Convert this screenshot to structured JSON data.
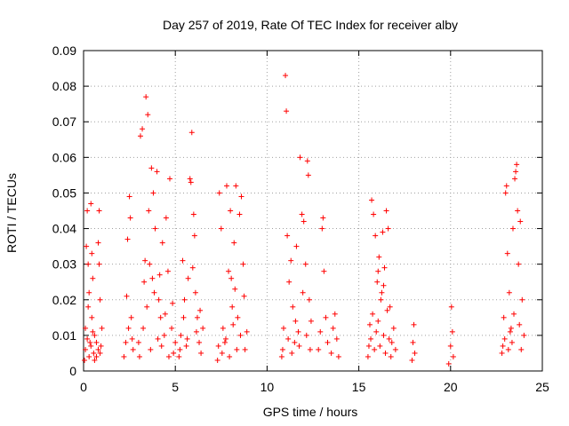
{
  "chart_data": {
    "type": "scatter",
    "title": "Day 257 of 2019, Rate Of TEC Index for receiver alby",
    "xlabel": "GPS time / hours",
    "ylabel": "ROTI / TECUs",
    "xlim": [
      0,
      25
    ],
    "ylim": [
      0,
      0.09
    ],
    "xticks": [
      0,
      5,
      10,
      15,
      20,
      25
    ],
    "yticks": [
      0,
      0.01,
      0.02,
      0.03,
      0.04,
      0.05,
      0.06,
      0.07,
      0.08,
      0.09
    ],
    "xtick_labels": [
      "0",
      "5",
      "10",
      "15",
      "20",
      "25"
    ],
    "ytick_labels": [
      "0",
      "0.01",
      "0.02",
      "0.03",
      "0.04",
      "0.05",
      "0.06",
      "0.07",
      "0.08",
      "0.09"
    ],
    "grid": true,
    "marker": "+",
    "color": "#ff0000",
    "series": [
      {
        "name": "ROTI",
        "points": [
          [
            0.05,
            0.003
          ],
          [
            0.1,
            0.012
          ],
          [
            0.15,
            0.035
          ],
          [
            0.2,
            0.045
          ],
          [
            0.25,
            0.03
          ],
          [
            0.3,
            0.022
          ],
          [
            0.35,
            0.008
          ],
          [
            0.4,
            0.047
          ],
          [
            0.45,
            0.015
          ],
          [
            0.5,
            0.026
          ],
          [
            0.55,
            0.005
          ],
          [
            0.6,
            0.01
          ],
          [
            0.7,
            0.004
          ],
          [
            0.8,
            0.036
          ],
          [
            0.85,
            0.045
          ],
          [
            0.9,
            0.02
          ],
          [
            0.95,
            0.007
          ],
          [
            1.0,
            0.012
          ],
          [
            0.1,
            0.006
          ],
          [
            0.2,
            0.009
          ],
          [
            0.3,
            0.004
          ],
          [
            0.4,
            0.007
          ],
          [
            0.5,
            0.011
          ],
          [
            0.6,
            0.003
          ],
          [
            0.7,
            0.008
          ],
          [
            0.8,
            0.006
          ],
          [
            0.9,
            0.005
          ],
          [
            0.25,
            0.018
          ],
          [
            0.45,
            0.033
          ],
          [
            0.85,
            0.03
          ],
          [
            2.2,
            0.004
          ],
          [
            2.3,
            0.008
          ],
          [
            2.35,
            0.021
          ],
          [
            2.4,
            0.037
          ],
          [
            2.5,
            0.049
          ],
          [
            2.55,
            0.043
          ],
          [
            2.6,
            0.015
          ],
          [
            2.7,
            0.006
          ],
          [
            2.45,
            0.012
          ],
          [
            2.65,
            0.009
          ],
          [
            3.0,
            0.008
          ],
          [
            3.1,
            0.066
          ],
          [
            3.2,
            0.068
          ],
          [
            3.3,
            0.025
          ],
          [
            3.4,
            0.077
          ],
          [
            3.5,
            0.072
          ],
          [
            3.55,
            0.045
          ],
          [
            3.6,
            0.03
          ],
          [
            3.7,
            0.057
          ],
          [
            3.8,
            0.05
          ],
          [
            3.9,
            0.04
          ],
          [
            4.0,
            0.056
          ],
          [
            4.1,
            0.02
          ],
          [
            4.2,
            0.015
          ],
          [
            4.3,
            0.036
          ],
          [
            4.4,
            0.01
          ],
          [
            4.5,
            0.043
          ],
          [
            4.6,
            0.028
          ],
          [
            4.7,
            0.054
          ],
          [
            4.8,
            0.012
          ],
          [
            4.9,
            0.005
          ],
          [
            5.0,
            0.008
          ],
          [
            3.05,
            0.004
          ],
          [
            3.25,
            0.012
          ],
          [
            3.45,
            0.018
          ],
          [
            3.65,
            0.006
          ],
          [
            3.85,
            0.022
          ],
          [
            4.05,
            0.009
          ],
          [
            4.25,
            0.007
          ],
          [
            4.45,
            0.016
          ],
          [
            4.65,
            0.004
          ],
          [
            4.85,
            0.019
          ],
          [
            3.35,
            0.031
          ],
          [
            3.75,
            0.026
          ],
          [
            4.15,
            0.027
          ],
          [
            5.2,
            0.004
          ],
          [
            5.3,
            0.01
          ],
          [
            5.4,
            0.031
          ],
          [
            5.5,
            0.02
          ],
          [
            5.6,
            0.007
          ],
          [
            5.7,
            0.026
          ],
          [
            5.8,
            0.054
          ],
          [
            5.85,
            0.053
          ],
          [
            5.9,
            0.067
          ],
          [
            6.0,
            0.044
          ],
          [
            6.05,
            0.038
          ],
          [
            6.1,
            0.022
          ],
          [
            6.2,
            0.015
          ],
          [
            6.3,
            0.008
          ],
          [
            6.4,
            0.005
          ],
          [
            6.5,
            0.012
          ],
          [
            5.25,
            0.006
          ],
          [
            5.45,
            0.015
          ],
          [
            5.65,
            0.009
          ],
          [
            5.95,
            0.029
          ],
          [
            6.15,
            0.011
          ],
          [
            6.35,
            0.017
          ],
          [
            7.3,
            0.003
          ],
          [
            7.4,
            0.05
          ],
          [
            7.5,
            0.04
          ],
          [
            7.6,
            0.012
          ],
          [
            7.7,
            0.008
          ],
          [
            7.8,
            0.052
          ],
          [
            7.9,
            0.028
          ],
          [
            8.0,
            0.045
          ],
          [
            8.1,
            0.018
          ],
          [
            8.2,
            0.036
          ],
          [
            8.3,
            0.052
          ],
          [
            8.4,
            0.015
          ],
          [
            8.5,
            0.044
          ],
          [
            8.6,
            0.049
          ],
          [
            8.7,
            0.03
          ],
          [
            8.8,
            0.006
          ],
          [
            8.9,
            0.011
          ],
          [
            7.35,
            0.007
          ],
          [
            7.55,
            0.005
          ],
          [
            7.75,
            0.009
          ],
          [
            7.95,
            0.004
          ],
          [
            8.15,
            0.013
          ],
          [
            8.35,
            0.006
          ],
          [
            8.55,
            0.01
          ],
          [
            8.75,
            0.021
          ],
          [
            8.05,
            0.026
          ],
          [
            8.25,
            0.023
          ],
          [
            10.8,
            0.004
          ],
          [
            10.9,
            0.012
          ],
          [
            11.0,
            0.083
          ],
          [
            11.05,
            0.073
          ],
          [
            11.1,
            0.038
          ],
          [
            11.2,
            0.025
          ],
          [
            11.3,
            0.031
          ],
          [
            11.4,
            0.018
          ],
          [
            11.5,
            0.008
          ],
          [
            11.6,
            0.035
          ],
          [
            11.7,
            0.011
          ],
          [
            11.8,
            0.06
          ],
          [
            11.9,
            0.044
          ],
          [
            12.0,
            0.042
          ],
          [
            12.1,
            0.03
          ],
          [
            12.2,
            0.059
          ],
          [
            12.25,
            0.055
          ],
          [
            12.3,
            0.02
          ],
          [
            12.4,
            0.014
          ],
          [
            10.85,
            0.006
          ],
          [
            11.15,
            0.009
          ],
          [
            11.35,
            0.005
          ],
          [
            11.55,
            0.014
          ],
          [
            11.75,
            0.007
          ],
          [
            11.95,
            0.022
          ],
          [
            12.15,
            0.01
          ],
          [
            12.35,
            0.006
          ],
          [
            12.8,
            0.006
          ],
          [
            12.9,
            0.011
          ],
          [
            13.0,
            0.04
          ],
          [
            13.05,
            0.043
          ],
          [
            13.1,
            0.028
          ],
          [
            13.2,
            0.015
          ],
          [
            13.3,
            0.008
          ],
          [
            13.5,
            0.005
          ],
          [
            13.6,
            0.012
          ],
          [
            13.7,
            0.016
          ],
          [
            13.8,
            0.009
          ],
          [
            13.9,
            0.004
          ],
          [
            15.5,
            0.004
          ],
          [
            15.6,
            0.013
          ],
          [
            15.7,
            0.048
          ],
          [
            15.8,
            0.044
          ],
          [
            15.9,
            0.038
          ],
          [
            16.0,
            0.025
          ],
          [
            16.1,
            0.032
          ],
          [
            16.2,
            0.02
          ],
          [
            16.3,
            0.039
          ],
          [
            16.4,
            0.029
          ],
          [
            16.5,
            0.045
          ],
          [
            16.6,
            0.04
          ],
          [
            16.7,
            0.018
          ],
          [
            16.8,
            0.008
          ],
          [
            16.9,
            0.012
          ],
          [
            17.0,
            0.006
          ],
          [
            15.55,
            0.007
          ],
          [
            15.65,
            0.009
          ],
          [
            15.75,
            0.016
          ],
          [
            15.85,
            0.006
          ],
          [
            15.95,
            0.011
          ],
          [
            16.05,
            0.014
          ],
          [
            16.15,
            0.007
          ],
          [
            16.25,
            0.022
          ],
          [
            16.35,
            0.01
          ],
          [
            16.45,
            0.005
          ],
          [
            16.55,
            0.017
          ],
          [
            16.65,
            0.009
          ],
          [
            16.75,
            0.004
          ],
          [
            16.05,
            0.028
          ],
          [
            16.35,
            0.024
          ],
          [
            17.9,
            0.003
          ],
          [
            17.95,
            0.008
          ],
          [
            18.0,
            0.013
          ],
          [
            18.05,
            0.005
          ],
          [
            19.9,
            0.002
          ],
          [
            20.0,
            0.007
          ],
          [
            20.05,
            0.018
          ],
          [
            20.1,
            0.011
          ],
          [
            20.15,
            0.004
          ],
          [
            22.8,
            0.005
          ],
          [
            22.9,
            0.015
          ],
          [
            23.0,
            0.05
          ],
          [
            23.05,
            0.052
          ],
          [
            23.1,
            0.033
          ],
          [
            23.2,
            0.022
          ],
          [
            23.3,
            0.012
          ],
          [
            23.4,
            0.04
          ],
          [
            23.5,
            0.054
          ],
          [
            23.55,
            0.056
          ],
          [
            23.6,
            0.058
          ],
          [
            23.65,
            0.045
          ],
          [
            23.7,
            0.03
          ],
          [
            23.8,
            0.042
          ],
          [
            23.9,
            0.02
          ],
          [
            24.0,
            0.01
          ],
          [
            22.85,
            0.007
          ],
          [
            22.95,
            0.009
          ],
          [
            23.15,
            0.006
          ],
          [
            23.25,
            0.011
          ],
          [
            23.35,
            0.008
          ],
          [
            23.45,
            0.016
          ],
          [
            23.75,
            0.013
          ],
          [
            23.85,
            0.006
          ]
        ]
      }
    ]
  }
}
